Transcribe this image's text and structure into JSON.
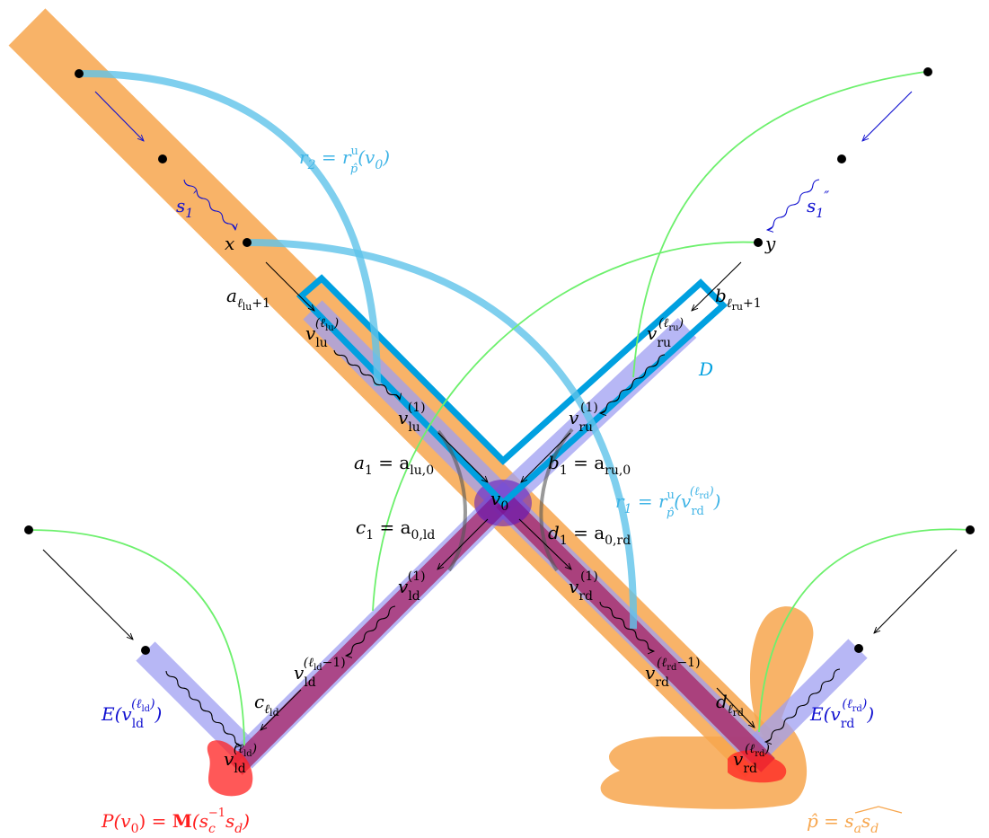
{
  "colors": {
    "orange": "#f7a64d",
    "lavender": "#9f9ff2",
    "crimson": "#a5175a",
    "cyan": "#00a0e0",
    "light_cyan": "#5fc3ea",
    "green": "#6df06d",
    "blue": "#1010d0",
    "red": "#ff2020",
    "black": "#000000"
  },
  "labels": {
    "x": "x",
    "y": "y",
    "s1p": {
      "base": "s",
      "sub": "1",
      "sup": "′"
    },
    "s1pp": {
      "base": "s",
      "sub": "1",
      "sup": "″"
    },
    "r2": {
      "lhs": "r",
      "lhs_sub": "2",
      "eq": " = r",
      "sup": "u",
      "sub": "p̂",
      "tail": "(v",
      "tail_sub": "0",
      "close": ")"
    },
    "r1": {
      "lhs": "r",
      "lhs_sub": "1",
      "eq": " = r",
      "sup": "u",
      "sub": "p̂",
      "tail": "(v",
      "arg_sub": "rd",
      "arg_sup": "(ℓ",
      "arg_sup_sub": "rd",
      "arg_sup_close": ")",
      "close": ")"
    },
    "D": "D",
    "a_lu": {
      "base": "a",
      "sub": "ℓ",
      "subsub": "lu",
      "plus": "+1"
    },
    "b_ru": {
      "base": "b",
      "sub": "ℓ",
      "subsub": "ru",
      "plus": "+1"
    },
    "v_lu_l": {
      "base": "v",
      "sub": "lu",
      "sup": "(ℓ",
      "supsub": "lu",
      "supclose": ")"
    },
    "v_ru_l": {
      "base": "v",
      "sub": "ru",
      "sup": "(ℓ",
      "supsub": "ru",
      "supclose": ")"
    },
    "v_lu_1": {
      "base": "v",
      "sub": "lu",
      "sup": "(1)"
    },
    "v_ru_1": {
      "base": "v",
      "sub": "ru",
      "sup": "(1)"
    },
    "a1": {
      "base": "a",
      "sub": "1",
      "eq": " = a",
      "rsub": "lu,0"
    },
    "b1": {
      "base": "b",
      "sub": "1",
      "eq": " = a",
      "rsub": "ru,0"
    },
    "c1": {
      "base": "c",
      "sub": "1",
      "eq": " = a",
      "rsub": "0,ld"
    },
    "d1": {
      "base": "d",
      "sub": "1",
      "eq": " = a",
      "rsub": "0,rd"
    },
    "v0": {
      "base": "v",
      "sub": "0"
    },
    "v_ld_1": {
      "base": "v",
      "sub": "ld",
      "sup": "(1)"
    },
    "v_rd_1": {
      "base": "v",
      "sub": "rd",
      "sup": "(1)"
    },
    "v_ld_lm1": {
      "base": "v",
      "sub": "ld",
      "sup": "(ℓ",
      "supsub": "ld",
      "supclose": "−1)"
    },
    "v_rd_lm1": {
      "base": "v",
      "sub": "rd",
      "sup": "(ℓ",
      "supsub": "rd",
      "supclose": "−1)"
    },
    "c_ld": {
      "base": "c",
      "sub": "ℓ",
      "subsub": "ld"
    },
    "d_rd": {
      "base": "d",
      "sub": "ℓ",
      "subsub": "rd"
    },
    "v_ld_l": {
      "base": "v",
      "sub": "ld",
      "sup": "(ℓ",
      "supsub": "ld",
      "supclose": ")"
    },
    "v_rd_l": {
      "base": "v",
      "sub": "rd",
      "sup": "(ℓ",
      "supsub": "rd",
      "supclose": ")"
    },
    "E_ld": {
      "base": "E(v",
      "sub": "ld",
      "sup": "(ℓ",
      "supsub": "ld",
      "supclose": ")",
      "close": ")"
    },
    "E_rd": {
      "base": "E(v",
      "sub": "rd",
      "sup": "(ℓ",
      "supsub": "rd",
      "supclose": ")",
      "close": ")"
    },
    "P": {
      "pre": "P(v",
      "pre_sub": "0",
      "mid": ") = ",
      "M": "M",
      "open": "(s",
      "s_sub": "c",
      "s_sup": "−1",
      "s2": "s",
      "s2_sub": "d",
      "close": ")"
    },
    "phat": {
      "lhs": "p̂",
      "eq": " = ",
      "rhs": "s",
      "rhs_sub1": "a",
      "rhs2": "s",
      "rhs_sub2": "d"
    }
  }
}
